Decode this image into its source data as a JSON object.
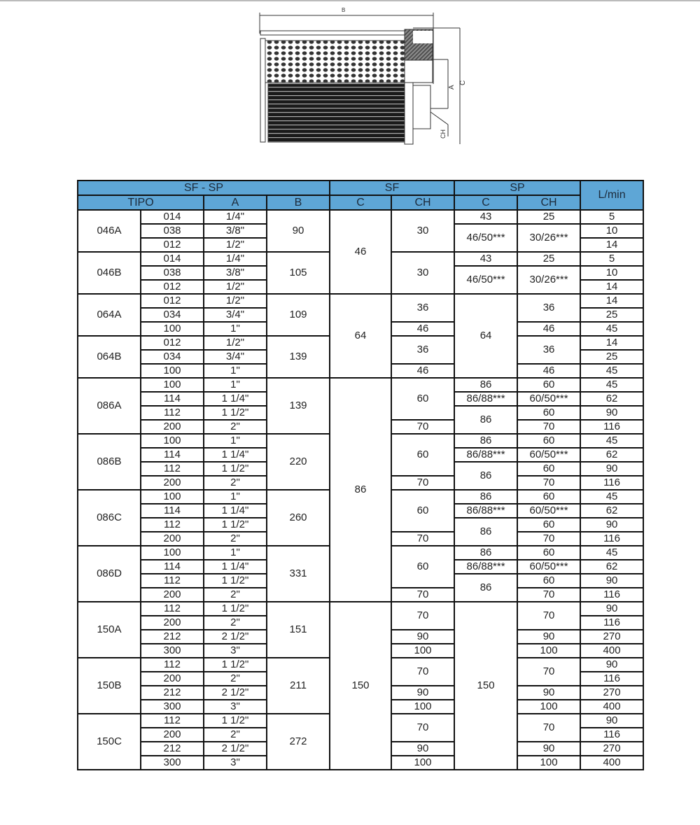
{
  "drawing": {
    "labels": {
      "b": "B",
      "c": "C",
      "a": "A",
      "ch": "CH"
    }
  },
  "colors": {
    "header_bg": "#5ea6d6",
    "border": "#111111"
  },
  "table": {
    "header_top": [
      {
        "t": "SF - SP",
        "cs": 4
      },
      {
        "t": "SF",
        "cs": 2
      },
      {
        "t": "SP",
        "cs": 2
      },
      {
        "t": "L/min",
        "rs": 2
      }
    ],
    "header_sub": [
      {
        "t": "TIPO",
        "cs": 2
      },
      {
        "t": "A"
      },
      {
        "t": "B"
      },
      {
        "t": "C"
      },
      {
        "t": "CH"
      },
      {
        "t": "C"
      },
      {
        "t": "CH"
      }
    ],
    "rows": [
      [
        [
          "046A",
          3
        ],
        [
          "014"
        ],
        [
          "1/4\""
        ],
        [
          "90",
          3
        ],
        [
          "46",
          6
        ],
        [
          "30",
          3
        ],
        [
          "43"
        ],
        [
          "25"
        ],
        [
          "5"
        ]
      ],
      [
        [
          "038"
        ],
        [
          "3/8\""
        ],
        [
          "46/50***",
          2
        ],
        [
          "30/26***",
          2
        ],
        [
          "10"
        ]
      ],
      [
        [
          "012"
        ],
        [
          "1/2\""
        ],
        [
          "14"
        ]
      ],
      [
        [
          "046B",
          3
        ],
        [
          "014"
        ],
        [
          "1/4\""
        ],
        [
          "105",
          3
        ],
        [
          "30",
          3
        ],
        [
          "43"
        ],
        [
          "25"
        ],
        [
          "5"
        ]
      ],
      [
        [
          "038"
        ],
        [
          "3/8\""
        ],
        [
          "46/50***",
          2
        ],
        [
          "30/26***",
          2
        ],
        [
          "10"
        ]
      ],
      [
        [
          "012"
        ],
        [
          "1/2\""
        ],
        [
          "14"
        ]
      ],
      [
        [
          "064A",
          3
        ],
        [
          "012"
        ],
        [
          "1/2\""
        ],
        [
          "109",
          3
        ],
        [
          "64",
          6
        ],
        [
          "36",
          2
        ],
        [
          "64",
          6
        ],
        [
          "36",
          2
        ],
        [
          "14"
        ]
      ],
      [
        [
          "034"
        ],
        [
          "3/4\""
        ],
        [
          "25"
        ]
      ],
      [
        [
          "100"
        ],
        [
          "1\""
        ],
        [
          "46"
        ],
        [
          "46"
        ],
        [
          "45"
        ]
      ],
      [
        [
          "064B",
          3
        ],
        [
          "012"
        ],
        [
          "1/2\""
        ],
        [
          "139",
          3
        ],
        [
          "36",
          2
        ],
        [
          "36",
          2
        ],
        [
          "14"
        ]
      ],
      [
        [
          "034"
        ],
        [
          "3/4\""
        ],
        [
          "25"
        ]
      ],
      [
        [
          "100"
        ],
        [
          "1\""
        ],
        [
          "46"
        ],
        [
          "46"
        ],
        [
          "45"
        ]
      ],
      [
        [
          "086A",
          4
        ],
        [
          "100"
        ],
        [
          "1\""
        ],
        [
          "139",
          4
        ],
        [
          "86",
          16
        ],
        [
          "60",
          3
        ],
        [
          "86"
        ],
        [
          "60"
        ],
        [
          "45"
        ]
      ],
      [
        [
          "114"
        ],
        [
          "1 1/4\""
        ],
        [
          "86/88***"
        ],
        [
          "60/50***"
        ],
        [
          "62"
        ]
      ],
      [
        [
          "112"
        ],
        [
          "1 1/2\""
        ],
        [
          "86",
          2
        ],
        [
          "60"
        ],
        [
          "90"
        ]
      ],
      [
        [
          "200"
        ],
        [
          "2\""
        ],
        [
          "70"
        ],
        [
          "70"
        ],
        [
          "116"
        ]
      ],
      [
        [
          "086B",
          4
        ],
        [
          "100"
        ],
        [
          "1\""
        ],
        [
          "220",
          4
        ],
        [
          "60",
          3
        ],
        [
          "86"
        ],
        [
          "60"
        ],
        [
          "45"
        ]
      ],
      [
        [
          "114"
        ],
        [
          "1 1/4\""
        ],
        [
          "86/88***"
        ],
        [
          "60/50***"
        ],
        [
          "62"
        ]
      ],
      [
        [
          "112"
        ],
        [
          "1 1/2\""
        ],
        [
          "86",
          2
        ],
        [
          "60"
        ],
        [
          "90"
        ]
      ],
      [
        [
          "200"
        ],
        [
          "2\""
        ],
        [
          "70"
        ],
        [
          "70"
        ],
        [
          "116"
        ]
      ],
      [
        [
          "086C",
          4
        ],
        [
          "100"
        ],
        [
          "1\""
        ],
        [
          "260",
          4
        ],
        [
          "60",
          3
        ],
        [
          "86"
        ],
        [
          "60"
        ],
        [
          "45"
        ]
      ],
      [
        [
          "114"
        ],
        [
          "1 1/4\""
        ],
        [
          "86/88***"
        ],
        [
          "60/50***"
        ],
        [
          "62"
        ]
      ],
      [
        [
          "112"
        ],
        [
          "1 1/2\""
        ],
        [
          "86",
          2
        ],
        [
          "60"
        ],
        [
          "90"
        ]
      ],
      [
        [
          "200"
        ],
        [
          "2\""
        ],
        [
          "70"
        ],
        [
          "70"
        ],
        [
          "116"
        ]
      ],
      [
        [
          "086D",
          4
        ],
        [
          "100"
        ],
        [
          "1\""
        ],
        [
          "331",
          4
        ],
        [
          "60",
          3
        ],
        [
          "86"
        ],
        [
          "60"
        ],
        [
          "45"
        ]
      ],
      [
        [
          "114"
        ],
        [
          "1 1/4\""
        ],
        [
          "86/88***"
        ],
        [
          "60/50***"
        ],
        [
          "62"
        ]
      ],
      [
        [
          "112"
        ],
        [
          "1 1/2\""
        ],
        [
          "86",
          2
        ],
        [
          "60"
        ],
        [
          "90"
        ]
      ],
      [
        [
          "200"
        ],
        [
          "2\""
        ],
        [
          "70"
        ],
        [
          "70"
        ],
        [
          "116"
        ]
      ],
      [
        [
          "150A",
          4
        ],
        [
          "112"
        ],
        [
          "1 1/2\""
        ],
        [
          "151",
          4
        ],
        [
          "150",
          12
        ],
        [
          "70",
          2
        ],
        [
          "150",
          12
        ],
        [
          "70",
          2
        ],
        [
          "90"
        ]
      ],
      [
        [
          "200"
        ],
        [
          "2\""
        ],
        [
          "116"
        ]
      ],
      [
        [
          "212"
        ],
        [
          "2 1/2\""
        ],
        [
          "90"
        ],
        [
          "90"
        ],
        [
          "270"
        ]
      ],
      [
        [
          "300"
        ],
        [
          "3\""
        ],
        [
          "100"
        ],
        [
          "100"
        ],
        [
          "400"
        ]
      ],
      [
        [
          "150B",
          4
        ],
        [
          "112"
        ],
        [
          "1 1/2\""
        ],
        [
          "211",
          4
        ],
        [
          "70",
          2
        ],
        [
          "70",
          2
        ],
        [
          "90"
        ]
      ],
      [
        [
          "200"
        ],
        [
          "2\""
        ],
        [
          "116"
        ]
      ],
      [
        [
          "212"
        ],
        [
          "2 1/2\""
        ],
        [
          "90"
        ],
        [
          "90"
        ],
        [
          "270"
        ]
      ],
      [
        [
          "300"
        ],
        [
          "3\""
        ],
        [
          "100"
        ],
        [
          "100"
        ],
        [
          "400"
        ]
      ],
      [
        [
          "150C",
          4
        ],
        [
          "112"
        ],
        [
          "1 1/2\""
        ],
        [
          "272",
          4
        ],
        [
          "70",
          2
        ],
        [
          "70",
          2
        ],
        [
          "90"
        ]
      ],
      [
        [
          "200"
        ],
        [
          "2\""
        ],
        [
          "116"
        ]
      ],
      [
        [
          "212"
        ],
        [
          "2 1/2\""
        ],
        [
          "90"
        ],
        [
          "90"
        ],
        [
          "270"
        ]
      ],
      [
        [
          "300"
        ],
        [
          "3\""
        ],
        [
          "100"
        ],
        [
          "100"
        ],
        [
          "400"
        ]
      ]
    ]
  }
}
